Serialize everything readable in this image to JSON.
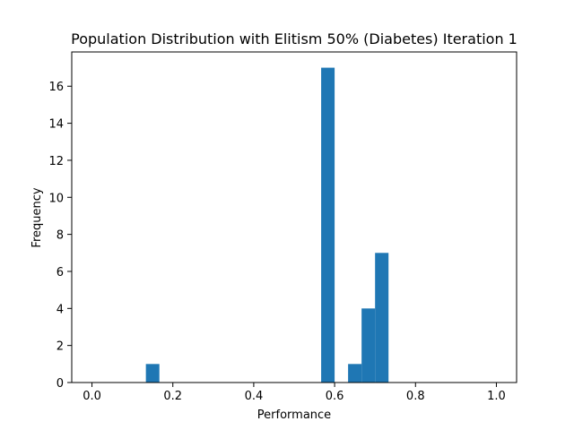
{
  "chart_data": {
    "type": "bar",
    "title": "Population Distribution with Elitism 50% (Diabetes) Iteration 1",
    "xlabel": "Performance",
    "ylabel": "Frequency",
    "xlim": [
      -0.05,
      1.05
    ],
    "ylim": [
      0,
      17.85
    ],
    "x_ticks": [
      0.0,
      0.2,
      0.4,
      0.6,
      0.8,
      1.0
    ],
    "x_tick_labels": [
      "0.0",
      "0.2",
      "0.4",
      "0.6",
      "0.8",
      "1.0"
    ],
    "y_ticks": [
      0,
      2,
      4,
      6,
      8,
      10,
      12,
      14,
      16
    ],
    "y_tick_labels": [
      "0",
      "2",
      "4",
      "6",
      "8",
      "10",
      "12",
      "14",
      "16"
    ],
    "bins": [
      {
        "x0": 0.1333,
        "x1": 0.1667,
        "value": 1
      },
      {
        "x0": 0.5667,
        "x1": 0.6,
        "value": 17
      },
      {
        "x0": 0.6333,
        "x1": 0.6667,
        "value": 1
      },
      {
        "x0": 0.6667,
        "x1": 0.7,
        "value": 4
      },
      {
        "x0": 0.7,
        "x1": 0.7333,
        "value": 7
      }
    ],
    "bar_color": "#1f77b4",
    "grid": false
  }
}
